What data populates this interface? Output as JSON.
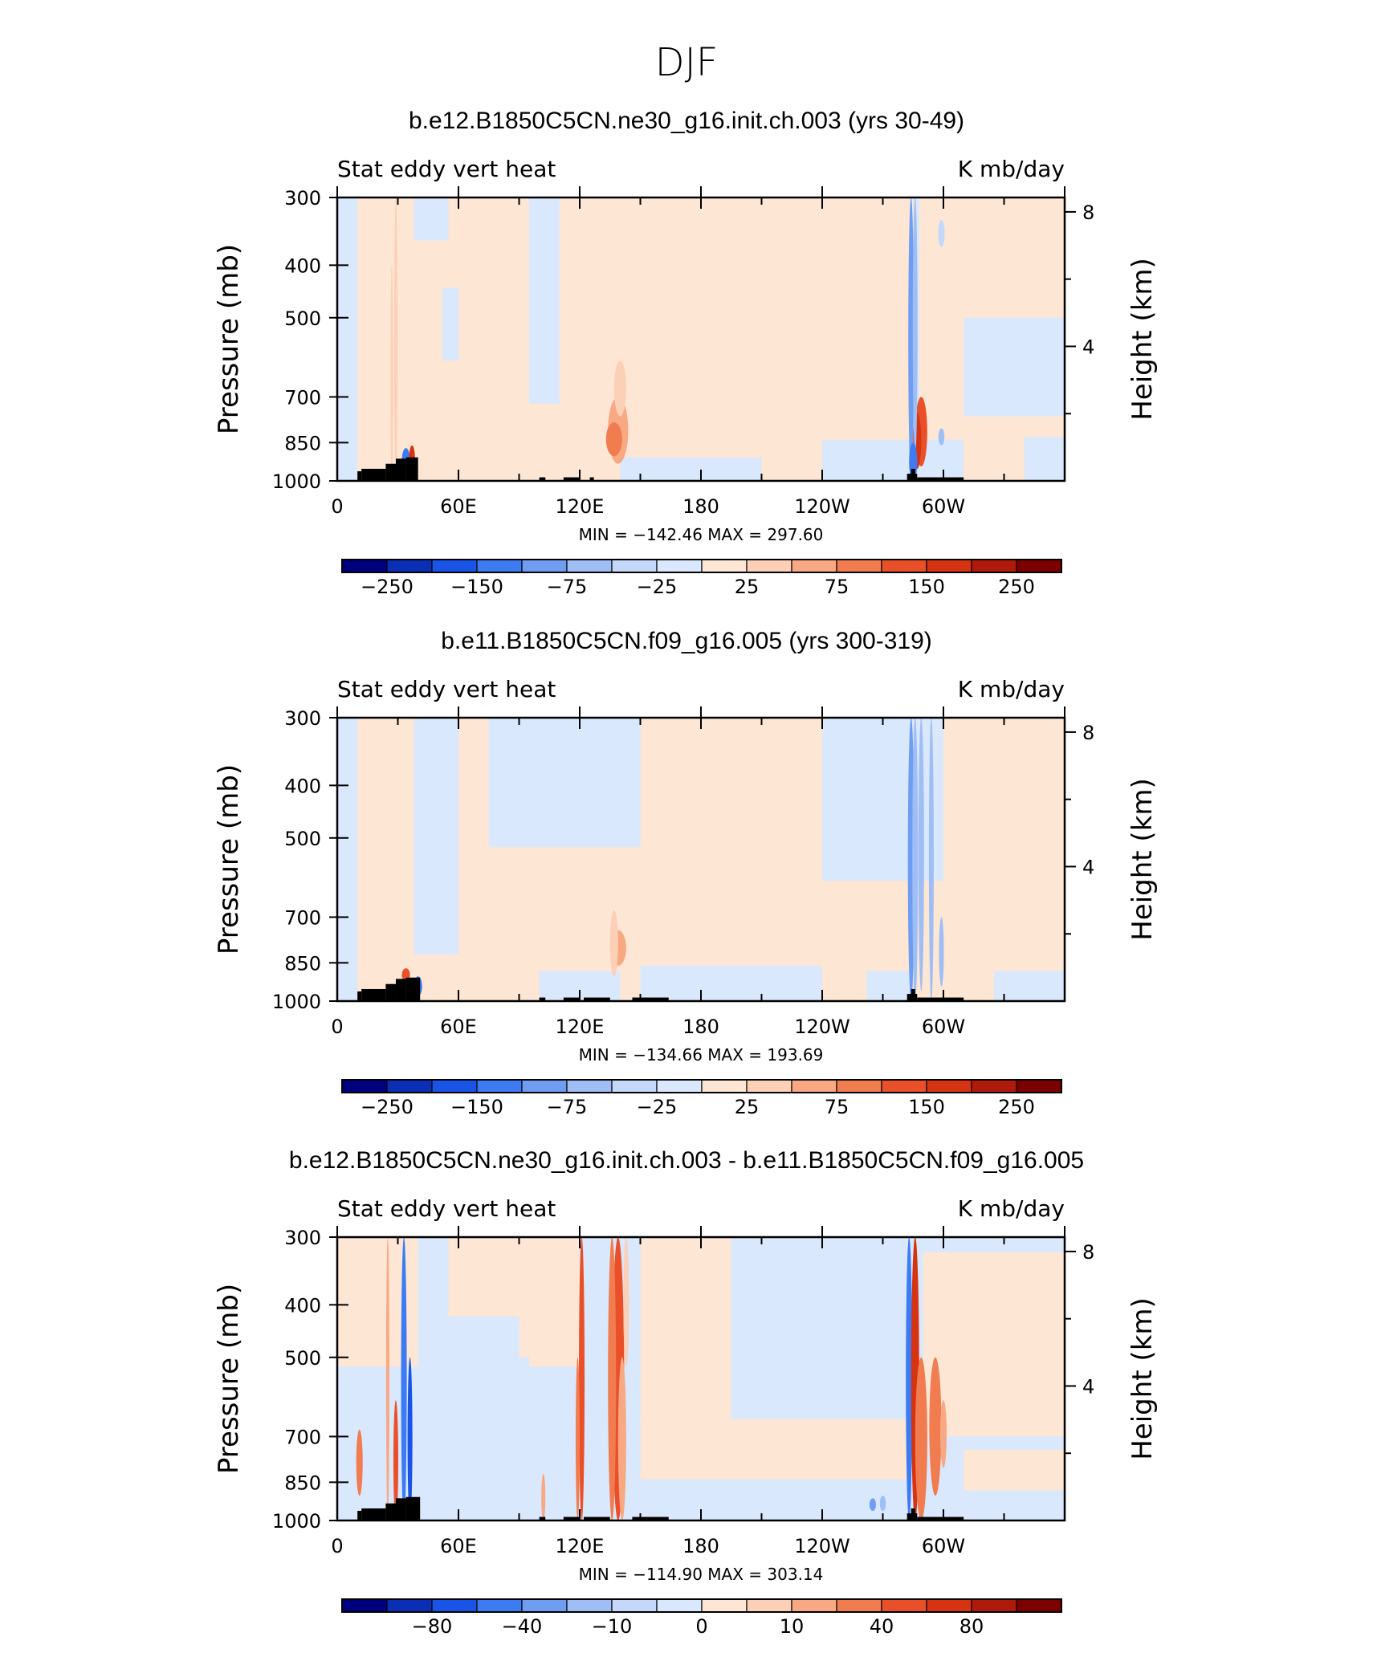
{
  "main_title": "DJF",
  "panels": [
    {
      "title": "b.e12.B1850C5CN.ne30_g16.init.ch.003 (yrs 30-49)",
      "left_label": "Stat eddy vert heat",
      "right_label": "K mb/day",
      "minmax": "MIN = −142.46   MAX = 297.60",
      "colorbar": {
        "ticks": [
          "−250",
          "−150",
          "−75",
          "−25",
          "25",
          "75",
          "150",
          "250"
        ],
        "tick_box_index": [
          1,
          3,
          5,
          7,
          9,
          11,
          13,
          15
        ]
      }
    },
    {
      "title": "b.e11.B1850C5CN.f09_g16.005 (yrs 300-319)",
      "left_label": "Stat eddy vert heat",
      "right_label": "K mb/day",
      "minmax": "MIN = −134.66   MAX = 193.69",
      "colorbar": {
        "ticks": [
          "−250",
          "−150",
          "−75",
          "−25",
          "25",
          "75",
          "150",
          "250"
        ],
        "tick_box_index": [
          1,
          3,
          5,
          7,
          9,
          11,
          13,
          15
        ]
      }
    },
    {
      "title": "b.e12.B1850C5CN.ne30_g16.init.ch.003 - b.e11.B1850C5CN.f09_g16.005",
      "left_label": "Stat eddy vert heat",
      "right_label": "K mb/day",
      "minmax": "MIN = −114.90   MAX = 303.14",
      "colorbar": {
        "ticks": [
          "−80",
          "−40",
          "−10",
          "0",
          "10",
          "40",
          "80"
        ],
        "tick_box_index": [
          2,
          4,
          6,
          8,
          10,
          12,
          14
        ]
      }
    }
  ],
  "chart_data": {
    "type": "heatmap",
    "x_axis": {
      "ticks": [
        "0",
        "60E",
        "120E",
        "180",
        "120W",
        "60W"
      ],
      "tick_lon": [
        0,
        60,
        120,
        180,
        240,
        300
      ],
      "range": [
        0,
        360
      ]
    },
    "y_left": {
      "label": "Pressure (mb)",
      "ticks": [
        "300",
        "400",
        "500",
        "700",
        "850",
        "1000"
      ],
      "tick_values": [
        300,
        400,
        500,
        700,
        850,
        1000
      ],
      "range": [
        300,
        1000
      ],
      "scale": "log"
    },
    "y_right": {
      "label": "Height (km)",
      "ticks": [
        "8",
        "4"
      ],
      "tick_values": [
        8,
        4
      ]
    },
    "colors": {
      "palette": [
        "#00007f",
        "#0a2fb5",
        "#1a54e6",
        "#3d7bf2",
        "#6e9df2",
        "#9ebef5",
        "#c4d9fa",
        "#d9e8fc",
        "#fde6d4",
        "#fcd0b6",
        "#f8a882",
        "#f07c4f",
        "#e9502a",
        "#d63312",
        "#b01a0a",
        "#7c0000"
      ],
      "background_negative": "#d9e8fc",
      "background_positive": "#fde6d4",
      "topography": "#000000"
    },
    "series": [
      {
        "name": "",
        "regions_pos": [
          [
            10,
            36,
            300,
            1000
          ],
          [
            38,
            95,
            360,
            650
          ],
          [
            38,
            65,
            700,
            900
          ],
          [
            55,
            88,
            780,
            900
          ],
          [
            141,
            240,
            300,
            900
          ],
          [
            240,
            300,
            330,
            480
          ],
          [
            240,
            318,
            730,
            770
          ],
          [
            308,
            360,
            300,
            500
          ],
          [
            270,
            315,
            500,
            700
          ],
          [
            138,
            145,
            300,
            640
          ],
          [
            315,
            340,
            780,
            850
          ]
        ],
        "regions_neg": [
          [
            38,
            55,
            300,
            360
          ],
          [
            95,
            110,
            300,
            720
          ],
          [
            140,
            210,
            905,
            1000
          ],
          [
            240,
            310,
            840,
            1000
          ],
          [
            285,
            288,
            300,
            1000
          ],
          [
            310,
            360,
            500,
            760
          ],
          [
            340,
            360,
            830,
            1000
          ],
          [
            52,
            60,
            440,
            600
          ],
          [
            0,
            10,
            300,
            1000
          ]
        ],
        "streaks": [
          [
            139,
            700,
            930,
            5,
            10
          ],
          [
            137,
            780,
            900,
            4,
            11
          ],
          [
            140,
            600,
            760,
            3,
            9
          ],
          [
            289,
            700,
            940,
            3,
            12
          ],
          [
            287,
            750,
            950,
            2,
            13
          ],
          [
            284,
            300,
            1000,
            1.4,
            4
          ],
          [
            286,
            300,
            900,
            1.2,
            5
          ],
          [
            285,
            850,
            1000,
            2,
            3
          ],
          [
            34,
            870,
            960,
            2,
            3
          ],
          [
            37,
            860,
            970,
            1.5,
            13
          ],
          [
            29,
            300,
            1000,
            0.8,
            9
          ],
          [
            27,
            400,
            1000,
            0.6,
            9
          ],
          [
            299,
            330,
            370,
            1.6,
            6
          ],
          [
            299,
            800,
            860,
            1.5,
            5
          ]
        ],
        "topo": [
          [
            10,
            12,
            960
          ],
          [
            12,
            24,
            950
          ],
          [
            24,
            29,
            930
          ],
          [
            29,
            34,
            910
          ],
          [
            34,
            40,
            905
          ],
          [
            100,
            103,
            985
          ],
          [
            112,
            120,
            985
          ],
          [
            125,
            127,
            985
          ],
          [
            282,
            287,
            970
          ],
          [
            284,
            286,
            950
          ],
          [
            287,
            310,
            985
          ]
        ]
      },
      {
        "name": "",
        "regions_pos": [
          [
            10,
            38,
            300,
            1000
          ],
          [
            44,
            72,
            470,
            780
          ],
          [
            60,
            100,
            470,
            830
          ],
          [
            98,
            125,
            560,
            900
          ],
          [
            150,
            240,
            300,
            860
          ],
          [
            225,
            245,
            430,
            860
          ],
          [
            245,
            262,
            300,
            960
          ],
          [
            262,
            300,
            600,
            960
          ],
          [
            300,
            360,
            300,
            880
          ],
          [
            120,
            135,
            420,
            880
          ]
        ],
        "regions_neg": [
          [
            38,
            60,
            300,
            820
          ],
          [
            75,
            150,
            300,
            520
          ],
          [
            150,
            240,
            860,
            1000
          ],
          [
            240,
            300,
            300,
            600
          ],
          [
            262,
            285,
            880,
            1000
          ],
          [
            325,
            360,
            880,
            1000
          ],
          [
            0,
            10,
            300,
            1000
          ],
          [
            100,
            140,
            880,
            1000
          ]
        ],
        "streaks": [
          [
            139,
            740,
            860,
            4,
            10
          ],
          [
            137,
            680,
            900,
            2,
            9
          ],
          [
            34,
            870,
            920,
            2,
            12
          ],
          [
            284,
            300,
            1000,
            1.6,
            4
          ],
          [
            286,
            300,
            1000,
            1.4,
            5
          ],
          [
            289,
            300,
            960,
            1.4,
            5
          ],
          [
            294,
            300,
            1000,
            1.2,
            5
          ],
          [
            299,
            700,
            940,
            1.2,
            5
          ],
          [
            40,
            900,
            980,
            2,
            3
          ]
        ],
        "topo": [
          [
            10,
            12,
            960
          ],
          [
            12,
            24,
            950
          ],
          [
            24,
            29,
            930
          ],
          [
            29,
            34,
            910
          ],
          [
            34,
            41,
            905
          ],
          [
            100,
            103,
            985
          ],
          [
            112,
            120,
            985
          ],
          [
            122,
            135,
            985
          ],
          [
            146,
            164,
            985
          ],
          [
            282,
            287,
            970
          ],
          [
            284,
            286,
            950
          ],
          [
            287,
            310,
            985
          ]
        ]
      },
      {
        "name": "",
        "regions_pos": [
          [
            0,
            50,
            300,
            520
          ],
          [
            55,
            90,
            300,
            420
          ],
          [
            90,
            120,
            300,
            520
          ],
          [
            150,
            195,
            300,
            650
          ],
          [
            150,
            285,
            650,
            840
          ],
          [
            290,
            360,
            320,
            700
          ],
          [
            310,
            360,
            740,
            880
          ],
          [
            20,
            40,
            520,
            1000
          ]
        ],
        "regions_neg": [
          [
            195,
            282,
            300,
            650
          ],
          [
            0,
            50,
            520,
            1000
          ],
          [
            50,
            120,
            520,
            1000
          ],
          [
            120,
            150,
            300,
            1000
          ],
          [
            150,
            282,
            840,
            1000
          ],
          [
            300,
            360,
            700,
            740
          ],
          [
            300,
            360,
            880,
            1000
          ],
          [
            72,
            95,
            500,
            600
          ],
          [
            40,
            52,
            300,
            1000
          ]
        ],
        "streaks": [
          [
            139,
            300,
            1000,
            3,
            12
          ],
          [
            136,
            300,
            1000,
            2,
            11
          ],
          [
            141,
            500,
            1000,
            2,
            10
          ],
          [
            143,
            300,
            520,
            1.4,
            9
          ],
          [
            121,
            300,
            1000,
            1.4,
            12
          ],
          [
            119,
            500,
            1000,
            1,
            11
          ],
          [
            283,
            300,
            1000,
            1.6,
            3
          ],
          [
            286,
            300,
            1000,
            2,
            13
          ],
          [
            289,
            500,
            1000,
            3,
            11
          ],
          [
            296,
            500,
            900,
            3,
            11
          ],
          [
            300,
            600,
            800,
            1.6,
            10
          ],
          [
            33,
            300,
            1000,
            1.4,
            3
          ],
          [
            36,
            500,
            1000,
            1.2,
            2
          ],
          [
            29,
            600,
            1000,
            1.2,
            12
          ],
          [
            25,
            300,
            1000,
            0.8,
            10
          ],
          [
            11,
            680,
            900,
            1.6,
            11
          ],
          [
            102,
            820,
            1000,
            1,
            10
          ],
          [
            265,
            910,
            960,
            1.6,
            4
          ],
          [
            270,
            900,
            960,
            1.5,
            5
          ]
        ],
        "topo": [
          [
            10,
            12,
            960
          ],
          [
            12,
            24,
            950
          ],
          [
            24,
            29,
            930
          ],
          [
            29,
            34,
            910
          ],
          [
            34,
            41,
            905
          ],
          [
            100,
            103,
            985
          ],
          [
            112,
            120,
            985
          ],
          [
            122,
            135,
            985
          ],
          [
            146,
            164,
            985
          ],
          [
            282,
            287,
            970
          ],
          [
            284,
            286,
            950
          ],
          [
            287,
            310,
            985
          ]
        ]
      }
    ]
  }
}
